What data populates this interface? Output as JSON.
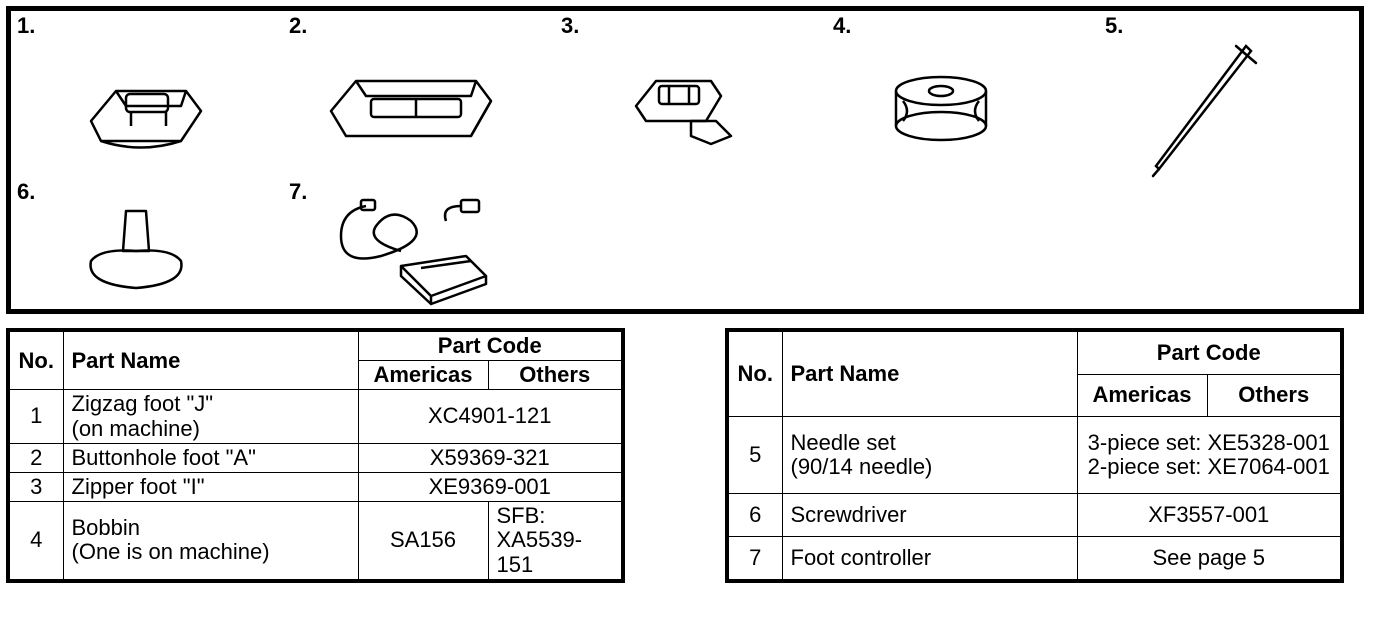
{
  "figure_numbers": [
    "1.",
    "2.",
    "3.",
    "4.",
    "5.",
    "6.",
    "7."
  ],
  "headers": {
    "no": "No.",
    "name": "Part Name",
    "code": "Part Code",
    "amer": "Americas",
    "oth": "Others"
  },
  "tableA": [
    {
      "no": "1",
      "name": "Zigzag foot \"J\"\n(on machine)",
      "amer": "XC4901-121",
      "oth": "",
      "merge": true
    },
    {
      "no": "2",
      "name": "Buttonhole foot \"A\"",
      "amer": "X59369-321",
      "oth": "",
      "merge": true
    },
    {
      "no": "3",
      "name": "Zipper foot \"I\"",
      "amer": "XE9369-001",
      "oth": "",
      "merge": true
    },
    {
      "no": "4",
      "name": "Bobbin\n(One is on machine)",
      "amer": "SA156",
      "oth": "SFB:\nXA5539-151",
      "merge": false
    }
  ],
  "tableB": [
    {
      "no": "5",
      "name": "Needle set\n(90/14 needle)",
      "amer": "3-piece set: XE5328-001\n2-piece set: XE7064-001",
      "oth": "",
      "merge": true
    },
    {
      "no": "6",
      "name": "Screwdriver",
      "amer": "XF3557-001",
      "oth": "",
      "merge": true
    },
    {
      "no": "7",
      "name": "Foot controller",
      "amer": "See page 5",
      "oth": "",
      "merge": true
    }
  ],
  "stroke": "#000",
  "strokewidth": "2",
  "fill": "none",
  "font": "Arial"
}
